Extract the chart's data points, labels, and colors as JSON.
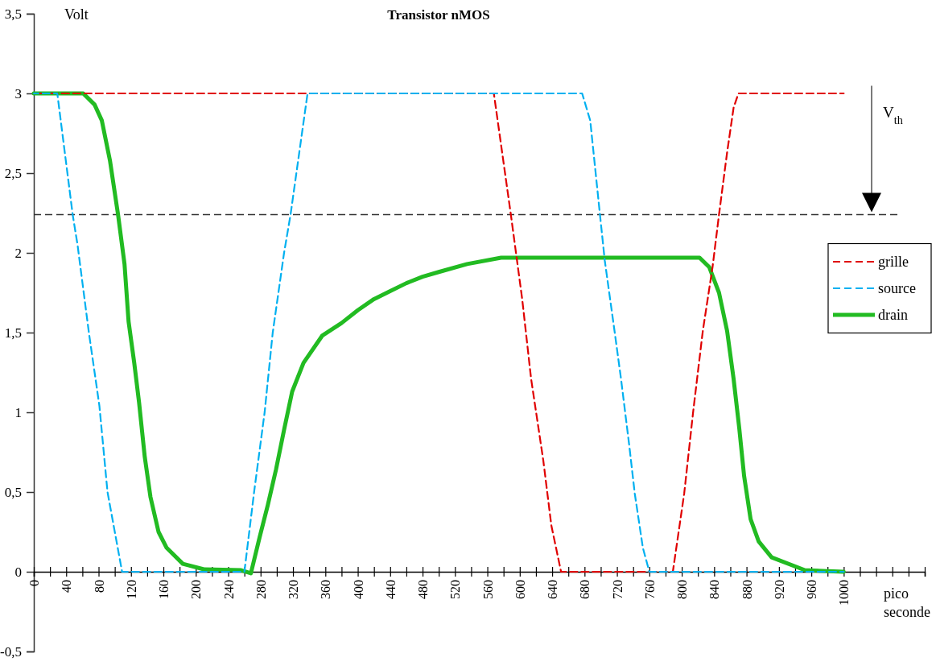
{
  "chart_data": {
    "type": "line",
    "title": "Transistor nMOS",
    "xlabel": "pico seconde",
    "ylabel": "Volt",
    "xlim": [
      0,
      1100
    ],
    "ylim": [
      -0.5,
      3.5
    ],
    "xticks": [
      0,
      {
        "value": 20,
        "label": null
      },
      40,
      {
        "value": 60,
        "label": null
      },
      80,
      {
        "value": 100,
        "label": null
      },
      120,
      {
        "value": 140,
        "label": null
      },
      160,
      {
        "value": 180,
        "label": null
      },
      200,
      {
        "value": 220,
        "label": null
      },
      240,
      {
        "value": 260,
        "label": null
      },
      280,
      {
        "value": 300,
        "label": null
      },
      320,
      {
        "value": 340,
        "label": null
      },
      360,
      {
        "value": 380,
        "label": null
      },
      400,
      {
        "value": 420,
        "label": null
      },
      440,
      {
        "value": 460,
        "label": null
      },
      480,
      {
        "value": 500,
        "label": null
      },
      520,
      {
        "value": 540,
        "label": null
      },
      560,
      {
        "value": 580,
        "label": null
      },
      600,
      {
        "value": 620,
        "label": null
      },
      640,
      {
        "value": 660,
        "label": null
      },
      680,
      {
        "value": 700,
        "label": null
      },
      720,
      {
        "value": 740,
        "label": null
      },
      760,
      {
        "value": 780,
        "label": null
      },
      800,
      {
        "value": 820,
        "label": null
      },
      840,
      {
        "value": 860,
        "label": null
      },
      880,
      {
        "value": 900,
        "label": null
      },
      920,
      {
        "value": 940,
        "label": null
      },
      960,
      {
        "value": 980,
        "label": null
      },
      1000,
      {
        "value": 1020,
        "label": null
      },
      {
        "value": 1040,
        "label": null
      },
      {
        "value": 1060,
        "label": null
      },
      {
        "value": 1080,
        "label": null
      },
      {
        "value": 1100,
        "label": null
      }
    ],
    "yticks": [
      {
        "value": -0.5,
        "label": "-0,5"
      },
      0,
      {
        "value": 0.5,
        "label": "0,5"
      },
      1,
      {
        "value": 1.5,
        "label": "1,5"
      },
      2,
      {
        "value": 2.5,
        "label": "2,5"
      },
      3,
      {
        "value": 3.5,
        "label": "3,5"
      }
    ],
    "grid": false,
    "legend": "right",
    "marker": "none",
    "ref_lines": [
      {
        "axis": "y",
        "value": 2.24,
        "color": "#333333",
        "line_style": "dashed"
      }
    ],
    "annotations": [
      "V$_{th}$"
    ],
    "series": [
      {
        "name": "grille",
        "color": "#e00000",
        "line_style": "dashed",
        "x": [
          0,
          568,
          589,
          603,
          614,
          629,
          639,
          651,
          789,
          803,
          814,
          826,
          838,
          846,
          856,
          864,
          870,
          1000
        ],
        "values": [
          3,
          3,
          2.24,
          1.71,
          1.21,
          0.7,
          0.29,
          0,
          0,
          0.49,
          1,
          1.51,
          1.91,
          2.24,
          2.63,
          2.91,
          3,
          3
        ]
      },
      {
        "name": "source",
        "color": "#00b0f0",
        "line_style": "dashed",
        "x": [
          0,
          29,
          48,
          54,
          68,
          81,
          91,
          109,
          260,
          272,
          285,
          295,
          309,
          317,
          338,
          677,
          687,
          699,
          705,
          717,
          725,
          735,
          742,
          752,
          760,
          1000
        ],
        "values": [
          3,
          3,
          2.24,
          2.05,
          1.5,
          1.04,
          0.5,
          0,
          0,
          0.5,
          1,
          1.5,
          2,
          2.24,
          3,
          3,
          2.83,
          2.24,
          1.95,
          1.51,
          1.21,
          0.8,
          0.49,
          0.15,
          0,
          0
        ]
      },
      {
        "name": "drain",
        "color": "#22bb22",
        "line_style": "solid",
        "x": [
          0,
          61,
          75,
          84,
          94,
          104,
          112,
          117,
          124,
          130,
          137,
          144,
          154,
          164,
          184,
          210,
          256,
          268,
          279,
          289,
          299,
          309,
          319,
          333,
          356,
          380,
          400,
          420,
          440,
          460,
          480,
          500,
          535,
          577,
          822,
          834,
          846,
          856,
          864,
          871,
          877,
          885,
          895,
          911,
          952,
          1000
        ],
        "values": [
          3,
          3,
          2.93,
          2.83,
          2.58,
          2.24,
          1.93,
          1.57,
          1.31,
          1.06,
          0.72,
          0.47,
          0.25,
          0.15,
          0.05,
          0.015,
          0.01,
          -0.01,
          0.22,
          0.42,
          0.64,
          0.89,
          1.13,
          1.31,
          1.48,
          1.56,
          1.64,
          1.71,
          1.76,
          1.81,
          1.85,
          1.88,
          1.93,
          1.97,
          1.97,
          1.91,
          1.75,
          1.51,
          1.21,
          0.9,
          0.6,
          0.33,
          0.19,
          0.09,
          0.01,
          0
        ]
      }
    ]
  }
}
